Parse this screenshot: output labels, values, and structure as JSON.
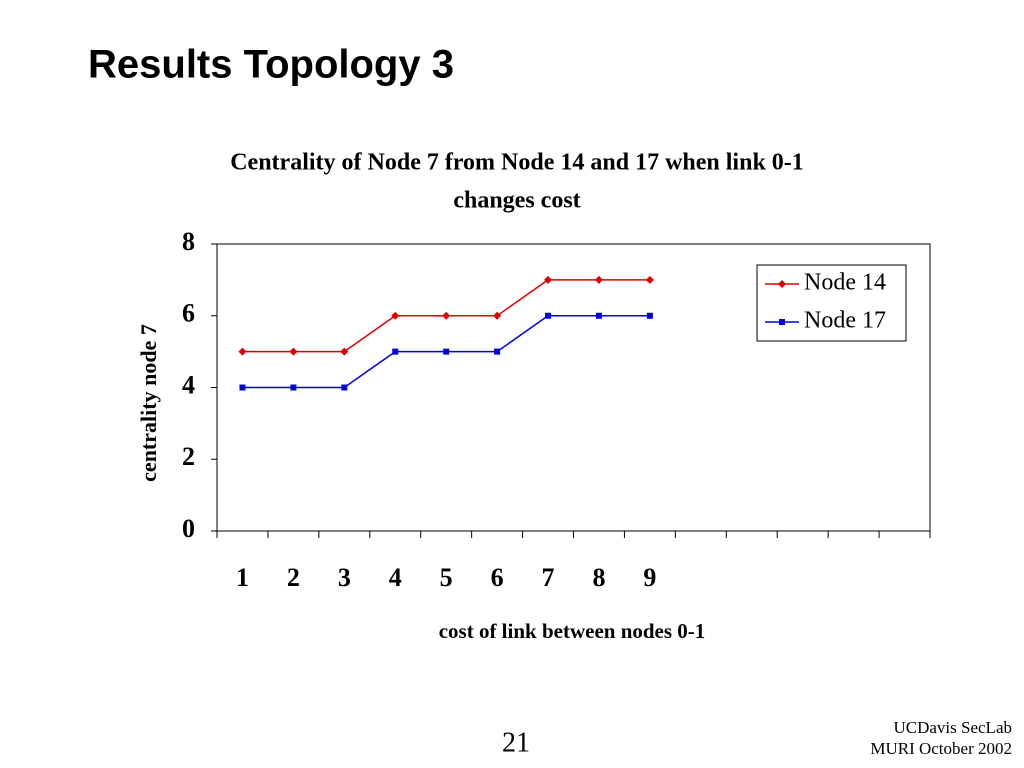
{
  "slide": {
    "title": "Results Topology 3",
    "page_number": "21",
    "footer": [
      "UCDavis SecLab",
      "MURI October 2002"
    ]
  },
  "chart_data": {
    "type": "line",
    "title": "Centrality of Node 7 from Node 14 and 17 when link 0-1",
    "subtitle": "changes cost",
    "x_label": "cost of link between nodes 0-1",
    "y_label": "centrality node 7",
    "categories": [
      "1",
      "2",
      "3",
      "4",
      "5",
      "6",
      "7",
      "8",
      "9",
      null,
      null,
      null,
      null,
      null
    ],
    "series": [
      {
        "name": "Node 14",
        "color": "#e00000",
        "marker": "diamond",
        "values": [
          5,
          5,
          5,
          6,
          6,
          6,
          7,
          7,
          7,
          null,
          null,
          null,
          null,
          null
        ]
      },
      {
        "name": "Node 17",
        "color": "#0000e0",
        "marker": "square",
        "values": [
          4,
          4,
          4,
          5,
          5,
          5,
          6,
          6,
          6,
          null,
          null,
          null,
          null,
          null
        ]
      }
    ],
    "ylim": [
      0,
      8
    ],
    "yticks": [
      0,
      2,
      4,
      6,
      8
    ],
    "grid": false,
    "legend": "upper right"
  }
}
